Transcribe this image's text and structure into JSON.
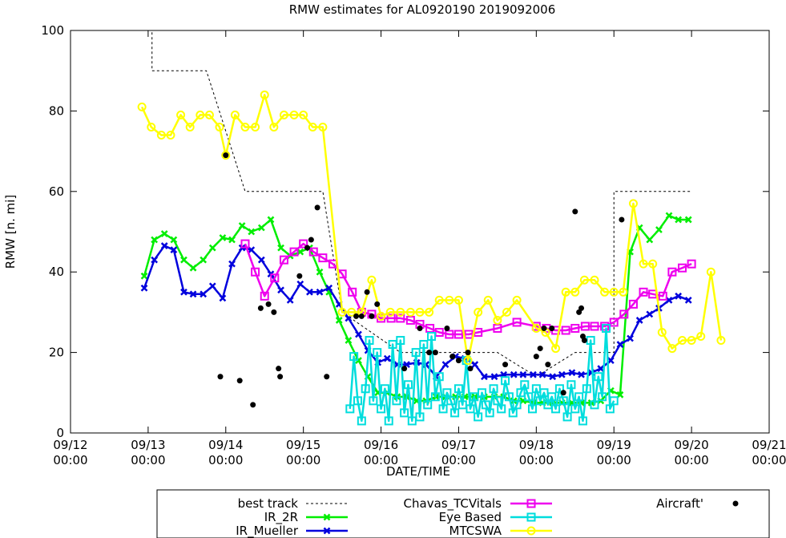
{
  "chart_data": {
    "type": "line",
    "title": "RMW estimates for AL0920190 2019092006",
    "xlabel": "DATE/TIME",
    "ylabel": "RMW [n. mi]",
    "xlim": [
      0,
      9
    ],
    "ylim": [
      0,
      100
    ],
    "x_ticks": [
      {
        "x": 0,
        "date": "09/12",
        "time": "00:00"
      },
      {
        "x": 1,
        "date": "09/13",
        "time": "00:00"
      },
      {
        "x": 2,
        "date": "09/14",
        "time": "00:00"
      },
      {
        "x": 3,
        "date": "09/15",
        "time": "00:00"
      },
      {
        "x": 4,
        "date": "09/16",
        "time": "00:00"
      },
      {
        "x": 5,
        "date": "09/17",
        "time": "00:00"
      },
      {
        "x": 6,
        "date": "09/18",
        "time": "00:00"
      },
      {
        "x": 7,
        "date": "09/19",
        "time": "00:00"
      },
      {
        "x": 8,
        "date": "09/20",
        "time": "00:00"
      },
      {
        "x": 9,
        "date": "09/21",
        "time": "00:00"
      }
    ],
    "y_ticks": [
      0,
      20,
      40,
      60,
      80,
      100
    ],
    "x_units": "days since 09/12 00:00",
    "series": [
      {
        "name": "best track",
        "style": "dashed",
        "color": "#000000",
        "marker": "none",
        "x": [
          0.95,
          1.05,
          1.05,
          1.75,
          2.25,
          2.25,
          3.25,
          3.5,
          4.25,
          4.5,
          5.5,
          6.0,
          6.5,
          7.0,
          7.0,
          8.0
        ],
        "y": [
          100,
          100,
          90,
          90,
          60,
          60,
          60,
          30,
          20,
          20,
          20,
          14,
          20,
          20,
          60,
          60
        ]
      },
      {
        "name": "IR_2R",
        "color": "#00ee00",
        "marker": "x",
        "x": [
          0.95,
          1.08,
          1.21,
          1.33,
          1.46,
          1.58,
          1.71,
          1.83,
          1.96,
          2.08,
          2.21,
          2.33,
          2.46,
          2.58,
          2.71,
          2.83,
          2.96,
          3.08,
          3.21,
          3.33,
          3.46,
          3.58,
          3.71,
          3.83,
          3.96,
          4.08,
          4.21,
          4.33,
          4.46,
          4.58,
          4.71,
          4.83,
          4.96,
          5.08,
          5.21,
          5.33,
          5.46,
          5.58,
          5.71,
          5.83,
          5.96,
          6.08,
          6.21,
          6.33,
          6.46,
          6.58,
          6.71,
          6.83,
          6.96,
          7.08,
          7.21,
          7.33,
          7.46,
          7.58,
          7.71,
          7.83,
          7.96
        ],
        "y": [
          39,
          48,
          49.5,
          48,
          43,
          41,
          43,
          46,
          48.5,
          48,
          51.5,
          50,
          51,
          53,
          46,
          44,
          45,
          46,
          40,
          35,
          28,
          23,
          18,
          14,
          10,
          10,
          9,
          9,
          8,
          8,
          9,
          9,
          9,
          9,
          9,
          9,
          9,
          9,
          8,
          8,
          7.5,
          7.5,
          7.5,
          7.5,
          7.5,
          7.5,
          7.5,
          8,
          10.5,
          9.5,
          45,
          51,
          48,
          50.5,
          54,
          53,
          53
        ]
      },
      {
        "name": "IR_Mueller",
        "color": "#0000dd",
        "marker": "x",
        "x": [
          0.95,
          1.08,
          1.21,
          1.33,
          1.46,
          1.58,
          1.71,
          1.83,
          1.96,
          2.08,
          2.21,
          2.33,
          2.46,
          2.58,
          2.71,
          2.83,
          2.96,
          3.08,
          3.21,
          3.33,
          3.46,
          3.58,
          3.71,
          3.83,
          3.96,
          4.08,
          4.21,
          4.33,
          4.46,
          4.58,
          4.71,
          4.83,
          4.96,
          5.08,
          5.21,
          5.33,
          5.46,
          5.58,
          5.71,
          5.83,
          5.96,
          6.08,
          6.21,
          6.33,
          6.46,
          6.58,
          6.71,
          6.83,
          6.96,
          7.08,
          7.21,
          7.33,
          7.46,
          7.58,
          7.71,
          7.83,
          7.96
        ],
        "y": [
          36,
          43,
          46.5,
          45.5,
          35,
          34.5,
          34.5,
          36.5,
          33.5,
          42,
          46,
          45.5,
          43,
          39.5,
          35.5,
          33,
          37,
          35,
          35,
          36,
          32,
          28.5,
          24.5,
          20.5,
          17.5,
          18.5,
          17,
          17,
          17.5,
          17,
          14,
          17,
          19,
          18.5,
          17,
          14,
          14,
          14.5,
          14.5,
          14.5,
          14.5,
          14.5,
          14,
          14.5,
          15,
          14.5,
          15,
          16,
          18,
          22,
          23.5,
          28,
          29.5,
          31,
          33,
          34,
          33
        ]
      },
      {
        "name": "Chavas_TCVitals",
        "color": "#ee00ee",
        "marker": "square",
        "x": [
          2.25,
          2.38,
          2.5,
          2.63,
          2.75,
          2.88,
          3.0,
          3.13,
          3.25,
          3.38,
          3.5,
          3.63,
          3.75,
          3.88,
          4.0,
          4.13,
          4.25,
          4.38,
          4.5,
          4.63,
          4.75,
          4.88,
          5.0,
          5.13,
          5.25,
          5.5,
          5.75,
          6.0,
          6.13,
          6.25,
          6.38,
          6.5,
          6.63,
          6.75,
          6.88,
          7.0,
          7.13,
          7.25,
          7.38,
          7.5,
          7.63,
          7.75,
          7.88,
          8.0
        ],
        "y": [
          47,
          40,
          34,
          38.5,
          43,
          45,
          47,
          45,
          43.5,
          42,
          39.5,
          35,
          30,
          29.5,
          28.5,
          28.5,
          28.5,
          28,
          27,
          26,
          25,
          24.5,
          24.5,
          24.5,
          25,
          26,
          27.5,
          26.5,
          26,
          25.5,
          25.5,
          26,
          26.5,
          26.5,
          26.5,
          27.5,
          29.5,
          32,
          35,
          34.5,
          34,
          40,
          41,
          42
        ]
      },
      {
        "name": "Eye Based",
        "color": "#00dddd",
        "marker": "square",
        "x": [
          3.6,
          3.65,
          3.7,
          3.75,
          3.8,
          3.85,
          3.9,
          3.95,
          4.0,
          4.05,
          4.1,
          4.15,
          4.2,
          4.25,
          4.3,
          4.35,
          4.4,
          4.45,
          4.5,
          4.55,
          4.6,
          4.65,
          4.7,
          4.75,
          4.8,
          4.85,
          4.9,
          4.95,
          5.0,
          5.05,
          5.1,
          5.15,
          5.2,
          5.25,
          5.3,
          5.35,
          5.4,
          5.45,
          5.5,
          5.55,
          5.6,
          5.65,
          5.7,
          5.75,
          5.8,
          5.85,
          5.9,
          5.95,
          6.0,
          6.05,
          6.1,
          6.15,
          6.2,
          6.25,
          6.3,
          6.35,
          6.4,
          6.45,
          6.5,
          6.55,
          6.6,
          6.65,
          6.7,
          6.75,
          6.8,
          6.85,
          6.9,
          6.95,
          7.0
        ],
        "y": [
          6,
          19,
          8,
          3,
          11,
          23,
          8,
          20,
          6,
          11,
          3,
          22,
          8,
          23,
          5,
          12,
          3,
          20,
          4,
          22,
          7,
          24,
          9,
          14,
          6,
          10,
          8,
          5,
          11,
          7,
          18,
          6,
          9,
          4,
          10,
          7,
          5,
          11,
          8,
          6,
          13,
          9,
          5,
          7,
          10,
          12,
          9,
          6,
          11,
          8,
          10,
          7,
          9,
          6,
          11,
          8,
          4,
          12,
          6,
          9,
          3,
          11,
          23,
          7,
          14,
          9,
          26,
          6,
          8
        ]
      },
      {
        "name": "MTCSWA",
        "color": "#ffff00",
        "marker": "circle",
        "x": [
          0.92,
          1.04,
          1.17,
          1.29,
          1.42,
          1.54,
          1.67,
          1.79,
          1.92,
          2.0,
          2.12,
          2.25,
          2.38,
          2.5,
          2.62,
          2.75,
          2.88,
          3.0,
          3.12,
          3.25,
          3.5,
          3.62,
          3.75,
          3.88,
          4.0,
          4.12,
          4.25,
          4.38,
          4.5,
          4.62,
          4.75,
          4.88,
          5.0,
          5.12,
          5.25,
          5.38,
          5.5,
          5.62,
          5.75,
          6.0,
          6.12,
          6.25,
          6.38,
          6.5,
          6.62,
          6.75,
          6.88,
          7.0,
          7.12,
          7.25,
          7.38,
          7.5,
          7.62,
          7.75,
          7.88,
          8.0,
          8.12,
          8.25,
          8.38
        ],
        "y": [
          81,
          76,
          74,
          74,
          79,
          76,
          79,
          79,
          76,
          69,
          79,
          76,
          76,
          84,
          76,
          79,
          79,
          79,
          76,
          76,
          30,
          30,
          30,
          38,
          29,
          30,
          30,
          30,
          30,
          30,
          33,
          33,
          33,
          18,
          30,
          33,
          28,
          30,
          33,
          26,
          25,
          21,
          35,
          35,
          38,
          38,
          35,
          35,
          35,
          57,
          42,
          42,
          25,
          21,
          23,
          23,
          24,
          40,
          23
        ]
      },
      {
        "name": "Aircraft'",
        "color": "#000000",
        "marker": "dot",
        "line": false,
        "x": [
          1.93,
          2.0,
          2.18,
          2.35,
          2.45,
          2.55,
          2.62,
          2.68,
          2.7,
          2.95,
          3.05,
          3.1,
          3.18,
          3.3,
          3.68,
          3.75,
          3.82,
          3.88,
          3.95,
          4.3,
          4.5,
          4.62,
          4.7,
          4.85,
          4.92,
          5.0,
          5.12,
          5.15,
          5.6,
          6.0,
          6.05,
          6.1,
          6.15,
          6.2,
          6.35,
          6.5,
          6.55,
          6.58,
          6.6,
          6.62,
          7.1
        ],
        "y": [
          14,
          69,
          13,
          7,
          31,
          32,
          30,
          16,
          14,
          39,
          46,
          48,
          56,
          14,
          29,
          29,
          35,
          29,
          32,
          16,
          26,
          20,
          20,
          26,
          19,
          18,
          20,
          16,
          17,
          19,
          21,
          26,
          17,
          26,
          10,
          55,
          30,
          31,
          24,
          23,
          53
        ]
      }
    ],
    "legend": {
      "placement": "bottom",
      "entries": [
        "best track",
        "IR_2R",
        "IR_Mueller",
        "Chavas_TCVitals",
        "Eye Based",
        "MTCSWA",
        "Aircraft'"
      ]
    }
  }
}
